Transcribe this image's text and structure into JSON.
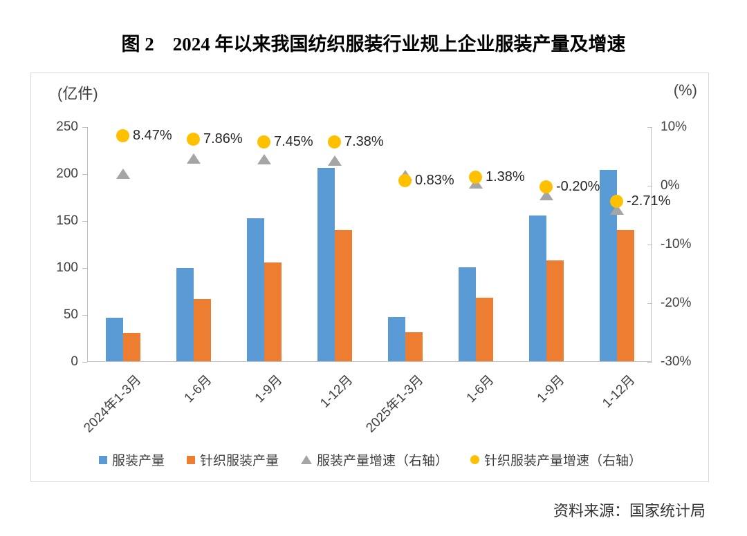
{
  "figure": {
    "title": "图 2　2024 年以来我国纺织服装行业规上企业服装产量及增速",
    "source": "资料来源：国家统计局"
  },
  "chart_data": {
    "type": "bar",
    "subtype": "dual-axis combo: grouped bars (left axis) + scatter markers (right axis)",
    "categories": [
      "2024年1-3月",
      "1-6月",
      "1-9月",
      "1-12月",
      "2025年1-3月",
      "1-6月",
      "1-9月",
      "1-12月"
    ],
    "left_axis": {
      "unit": "(亿件)",
      "range": [
        0,
        250
      ],
      "ticks": [
        250,
        200,
        150,
        100,
        50,
        0
      ]
    },
    "right_axis": {
      "unit": "(%)",
      "range": [
        -30,
        10
      ],
      "ticks": [
        "10%",
        "0%",
        "-10%",
        "-20%",
        "-30%"
      ]
    },
    "grid": "off",
    "legend_position": "bottom",
    "series": [
      {
        "name": "服装产量",
        "type": "bar",
        "axis": "left",
        "color": "#5B9BD5",
        "values": [
          46,
          99,
          152,
          206,
          47,
          100,
          155,
          204
        ]
      },
      {
        "name": "针织服装产量",
        "type": "bar",
        "axis": "left",
        "color": "#ED7D31",
        "values": [
          30,
          66,
          105,
          140,
          31,
          68,
          107,
          140
        ]
      },
      {
        "name": "服装产量增速（右轴）",
        "type": "scatter-triangle",
        "axis": "right",
        "color": "#A5A5A5",
        "values": [
          2.0,
          4.6,
          4.5,
          4.2,
          1.8,
          0.3,
          -1.7,
          -4.1
        ]
      },
      {
        "name": "针织服装产量增速（右轴）",
        "type": "scatter-circle",
        "axis": "right",
        "color": "#FFC000",
        "values": [
          8.47,
          7.86,
          7.45,
          7.38,
          0.83,
          1.38,
          -0.2,
          -2.71
        ],
        "data_labels": [
          "8.47%",
          "7.86%",
          "7.45%",
          "7.38%",
          "0.83%",
          "1.38%",
          "-0.20%",
          "-2.71%"
        ]
      }
    ]
  }
}
